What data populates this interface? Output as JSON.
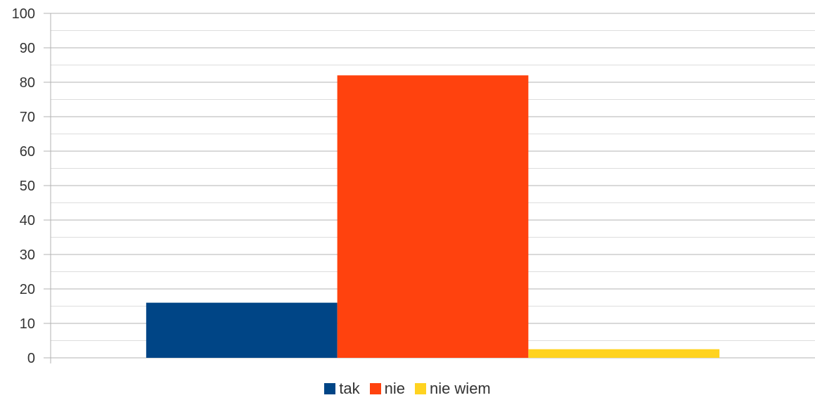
{
  "chart_data": {
    "type": "bar",
    "title": "",
    "xlabel": "",
    "ylabel": "",
    "ylim": [
      0,
      100
    ],
    "yticks": [
      "0",
      "10",
      "20",
      "30",
      "40",
      "50",
      "60",
      "70",
      "80",
      "90",
      "100"
    ],
    "grid": true,
    "minor_grid": true,
    "legend_position": "bottom",
    "categories": [
      ""
    ],
    "series": [
      {
        "name": "tak",
        "values": [
          16
        ],
        "color": "#004586"
      },
      {
        "name": "nie",
        "values": [
          82
        ],
        "color": "#ff420e"
      },
      {
        "name": "nie wiem",
        "values": [
          2.5
        ],
        "color": "#ffd320"
      }
    ]
  }
}
